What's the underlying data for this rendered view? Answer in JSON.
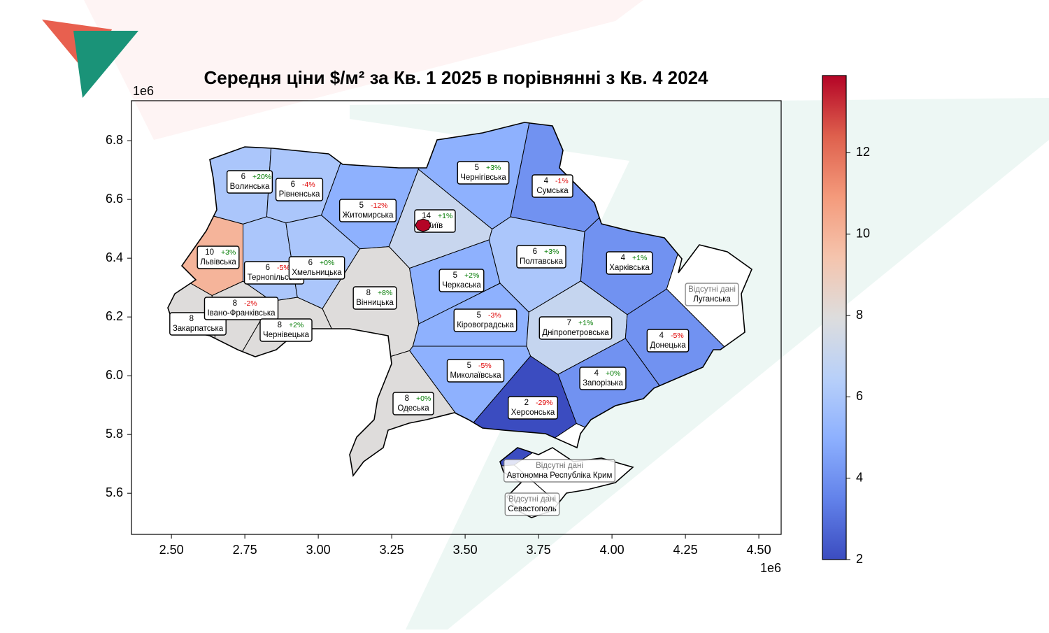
{
  "chart_data": {
    "type": "choropleth",
    "title": "Середня ціни $/м² за Кв. 1  2025  в порівнянні з  Кв. 4  2024",
    "xlim": [
      2364000,
      4576000
    ],
    "ylim": [
      5460000,
      6936000
    ],
    "xticks": [
      {
        "value": 2500000,
        "label": "2.50"
      },
      {
        "value": 2750000,
        "label": "2.75"
      },
      {
        "value": 3000000,
        "label": "3.00"
      },
      {
        "value": 3250000,
        "label": "3.25"
      },
      {
        "value": 3500000,
        "label": "3.50"
      },
      {
        "value": 3750000,
        "label": "3.75"
      },
      {
        "value": 4000000,
        "label": "4.00"
      },
      {
        "value": 4250000,
        "label": "4.25"
      },
      {
        "value": 4500000,
        "label": "4.50"
      }
    ],
    "yticks": [
      {
        "value": 5600000,
        "label": "5.6"
      },
      {
        "value": 5800000,
        "label": "5.8"
      },
      {
        "value": 6000000,
        "label": "6.0"
      },
      {
        "value": 6200000,
        "label": "6.2"
      },
      {
        "value": 6400000,
        "label": "6.4"
      },
      {
        "value": 6600000,
        "label": "6.6"
      },
      {
        "value": 6800000,
        "label": "6.8"
      }
    ],
    "x_offset_label": "1e6",
    "y_offset_label": "1e6",
    "colormap": "coolwarm",
    "clim": [
      2,
      13.9
    ],
    "colorbar_ticks": [
      2,
      4,
      6,
      8,
      10,
      12
    ],
    "missing_label": "Відсутні дані",
    "regions": [
      {
        "name": "Волинська",
        "value": 6,
        "change": 20,
        "change_label": "+20%"
      },
      {
        "name": "Рівненська",
        "value": 6,
        "change": -4,
        "change_label": "-4%"
      },
      {
        "name": "Житомирська",
        "value": 5,
        "change": -12,
        "change_label": "-12%"
      },
      {
        "name": "Київ",
        "value": 14,
        "change": 1,
        "change_label": "+1%"
      },
      {
        "name": "Чернігівська",
        "value": 5,
        "change": 3,
        "change_label": "+3%"
      },
      {
        "name": "Сумська",
        "value": 4,
        "change": -1,
        "change_label": "-1%"
      },
      {
        "name": "Львівська",
        "value": 10,
        "change": 3,
        "change_label": "+3%"
      },
      {
        "name": "Тернопільська",
        "value": 6,
        "change": -5,
        "change_label": "-5%"
      },
      {
        "name": "Хмельницька",
        "value": 6,
        "change": 0,
        "change_label": "+0%"
      },
      {
        "name": "Вінницька",
        "value": 8,
        "change": 8,
        "change_label": "+8%"
      },
      {
        "name": "Черкаська",
        "value": 5,
        "change": 2,
        "change_label": "+2%"
      },
      {
        "name": "Полтавська",
        "value": 6,
        "change": 3,
        "change_label": "+3%"
      },
      {
        "name": "Харківська",
        "value": 4,
        "change": 1,
        "change_label": "+1%"
      },
      {
        "name": "Луганська",
        "value": null
      },
      {
        "name": "Закарпатська",
        "value": 8
      },
      {
        "name": "Івано-Франківська",
        "value": 8,
        "change": -2,
        "change_label": "-2%"
      },
      {
        "name": "Чернівецька",
        "value": 8,
        "change": 2,
        "change_label": "+2%"
      },
      {
        "name": "Кіровоградська",
        "value": 5,
        "change": -3,
        "change_label": "-3%"
      },
      {
        "name": "Дніпропетровська",
        "value": 7,
        "change": 1,
        "change_label": "+1%"
      },
      {
        "name": "Донецька",
        "value": 4,
        "change": -5,
        "change_label": "-5%"
      },
      {
        "name": "Миколаївська",
        "value": 5,
        "change": -5,
        "change_label": "-5%"
      },
      {
        "name": "Запорізька",
        "value": 4,
        "change": 0,
        "change_label": "+0%"
      },
      {
        "name": "Одеська",
        "value": 8,
        "change": 0,
        "change_label": "+0%"
      },
      {
        "name": "Херсонська",
        "value": 2,
        "change": -29,
        "change_label": "-29%"
      },
      {
        "name": "Автономна Республіка Крим",
        "value": null
      },
      {
        "name": "Севастополь",
        "value": null
      }
    ]
  }
}
